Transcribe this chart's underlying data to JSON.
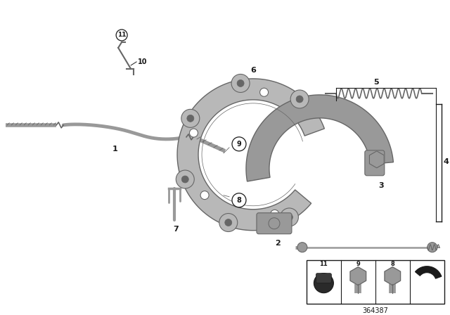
{
  "bg_color": "#ffffff",
  "part_number": "364387",
  "fig_width": 6.4,
  "fig_height": 4.48,
  "dpi": 100,
  "gray_light": "#b8b8b8",
  "gray_mid": "#999999",
  "gray_dark": "#666666",
  "black": "#1a1a1a"
}
